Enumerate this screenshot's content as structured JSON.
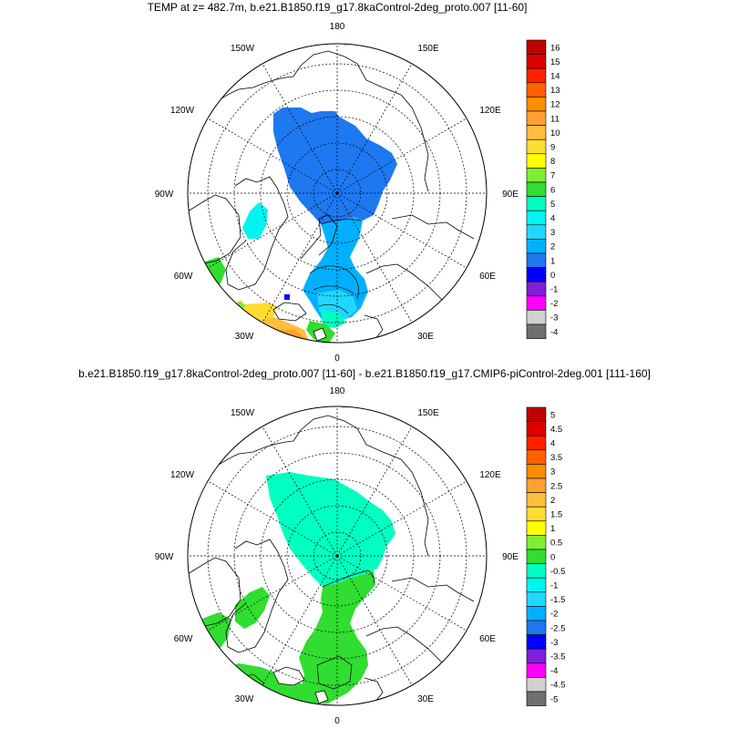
{
  "panels": [
    {
      "title": "TEMP at z= 482.7m, b.e21.B1850.f19_g17.8kaControl-2deg_proto.007 [11-60]",
      "longitude_labels": [
        "180",
        "150E",
        "120E",
        "90E",
        "60E",
        "30E",
        "0",
        "30W",
        "60W",
        "90W",
        "120W",
        "150W"
      ],
      "colorbar": {
        "labels": [
          "16",
          "15",
          "14",
          "13",
          "12",
          "11",
          "10",
          "9",
          "8",
          "7",
          "6",
          "5",
          "4",
          "3",
          "2",
          "1",
          "0",
          "-1",
          "-2",
          "-3",
          "-4"
        ],
        "colors": [
          "#c00000",
          "#dd0000",
          "#ff2000",
          "#ff6000",
          "#ff8c00",
          "#ffa030",
          "#ffbe3c",
          "#ffdd30",
          "#ffff00",
          "#80ee30",
          "#30dd30",
          "#00ffc0",
          "#00f5f0",
          "#20d8ff",
          "#00b0ff",
          "#1e78f0",
          "#0000ff",
          "#8020d8",
          "#ff00ff",
          "#d0d0d0",
          "#707070"
        ]
      }
    },
    {
      "title": "b.e21.B1850.f19_g17.8kaControl-2deg_proto.007 [11-60] - b.e21.B1850.f19_g17.CMIP6-piControl-2deg.001 [111-160]",
      "longitude_labels": [
        "180",
        "150E",
        "120E",
        "90E",
        "60E",
        "30E",
        "0",
        "30W",
        "60W",
        "90W",
        "120W",
        "150W"
      ],
      "colorbar": {
        "labels": [
          "5",
          "4.5",
          "4",
          "3.5",
          "3",
          "2.5",
          "2",
          "1.5",
          "1",
          "0.5",
          "0",
          "-0.5",
          "-1",
          "-1.5",
          "-2",
          "-2.5",
          "-3",
          "-3.5",
          "-4",
          "-4.5",
          "-5"
        ],
        "colors": [
          "#c00000",
          "#dd0000",
          "#ff2000",
          "#ff6000",
          "#ff8c00",
          "#ffa030",
          "#ffbe3c",
          "#ffdd30",
          "#ffff00",
          "#80ee30",
          "#30dd30",
          "#00ffc0",
          "#00f5f0",
          "#20d8ff",
          "#00b0ff",
          "#1e78f0",
          "#0000ff",
          "#8020d8",
          "#ff00ff",
          "#d0d0d0",
          "#707070"
        ]
      }
    }
  ]
}
